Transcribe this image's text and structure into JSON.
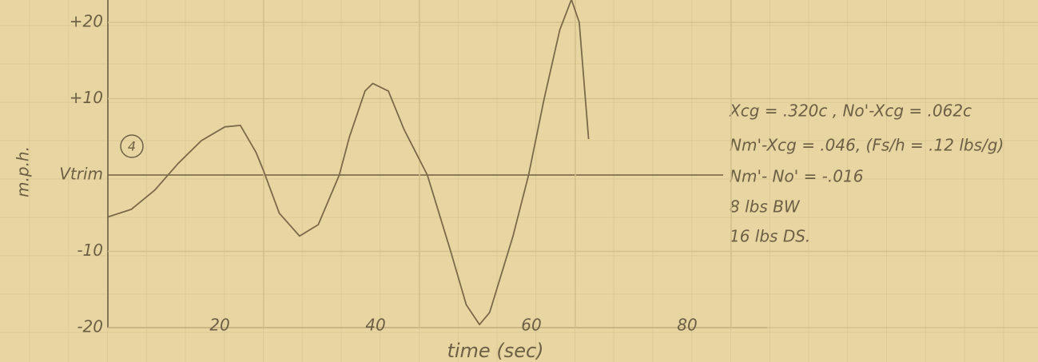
{
  "chart_data": {
    "type": "line",
    "y_label": "m.p.h.",
    "x_label": "time (sec)",
    "marker": "4",
    "annotations": [
      "Xcg = .320c , No'-Xcg = .062c",
      "Nm'-Xcg = .046, (Fs/h = .12 lbs/g)",
      "Nm'- No' = -.016",
      "8 lbs BW",
      "16 lbs DS."
    ],
    "x": [
      0,
      3,
      6,
      9,
      12,
      15,
      17,
      19,
      20,
      22,
      24.6,
      27,
      29.7,
      31,
      33,
      34,
      36,
      38,
      41,
      44,
      46,
      47.7,
      49,
      52,
      54,
      56,
      58,
      59.5,
      60.5,
      61.7
    ],
    "values": [
      -5.5,
      -4.5,
      -2,
      1.5,
      4.5,
      6.3,
      6.5,
      3,
      0.5,
      -5,
      -8,
      -6.5,
      0,
      5,
      11,
      12,
      11,
      6,
      0,
      -10,
      -17,
      -19.6,
      -18,
      -8,
      0,
      10,
      19,
      23,
      20,
      4.7
    ],
    "color": "#7a6a4a",
    "xlim": [
      0,
      80
    ],
    "xticks": [
      20,
      40,
      60,
      80
    ],
    "ylim": [
      -20,
      20
    ],
    "yticks": [
      {
        "value": 20,
        "label": "+20"
      },
      {
        "value": 10,
        "label": "+10"
      },
      {
        "value": 0,
        "label": "Vtrim"
      },
      -10,
      -20
    ],
    "grid": true
  }
}
